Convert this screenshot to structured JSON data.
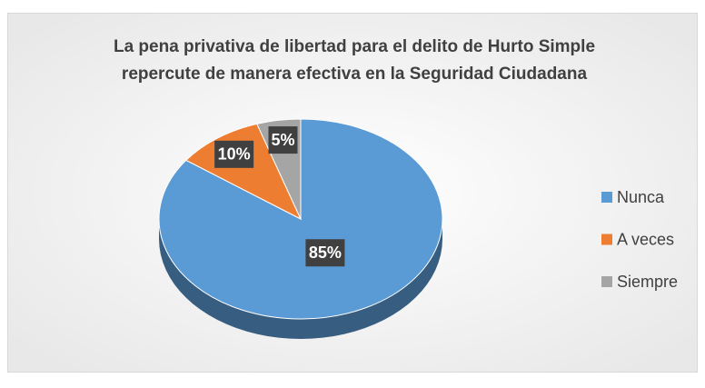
{
  "chart_data": {
    "type": "pie",
    "title": [
      "La pena privativa de libertad para el delito de Hurto Simple",
      "repercute de manera efectiva en la Seguridad Ciudadana"
    ],
    "categories": [
      "Nunca",
      "A veces",
      "Siempre"
    ],
    "values": [
      85,
      10,
      5
    ],
    "value_labels": [
      "85%",
      "10%",
      "5%"
    ],
    "colors": [
      "#5b9bd5",
      "#ed7d31",
      "#a5a5a5"
    ],
    "legend": "right"
  }
}
